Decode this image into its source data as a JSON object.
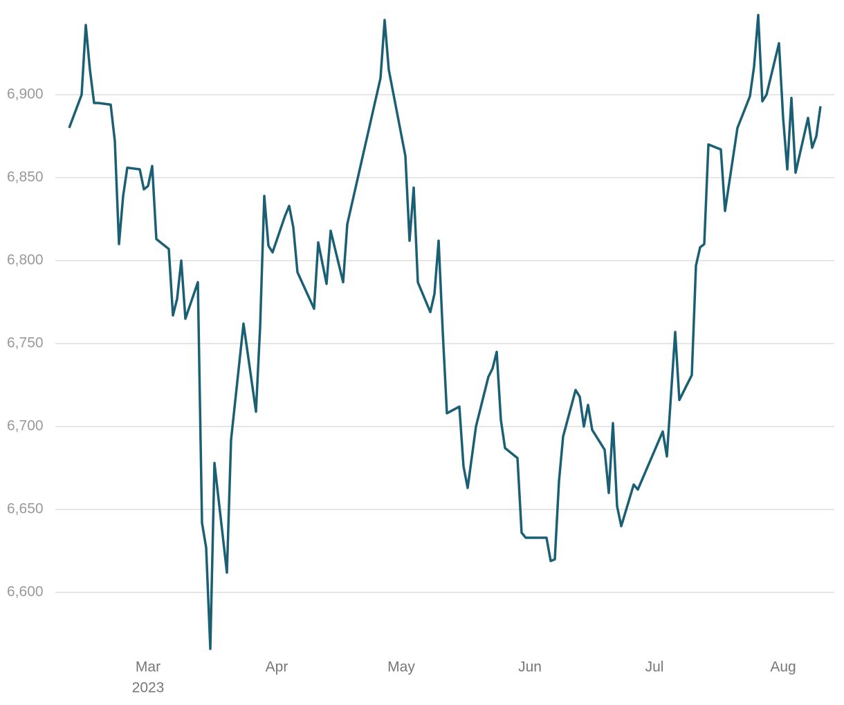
{
  "chart_data": {
    "type": "line",
    "x": [
      -19,
      -16,
      -15,
      -14,
      -13,
      -12,
      -9,
      -8,
      -7,
      -6,
      -5,
      -2,
      -1,
      0,
      1,
      2,
      5,
      6,
      7,
      8,
      9,
      12,
      13,
      14,
      15,
      16,
      19,
      20,
      23,
      26,
      27,
      28,
      29,
      30,
      33,
      34,
      35,
      36,
      40,
      41,
      43,
      44,
      47,
      48,
      56,
      57,
      58,
      62,
      63,
      64,
      65,
      68,
      69,
      70,
      71,
      72,
      75,
      76,
      77,
      79,
      82,
      83,
      84,
      85,
      86,
      89,
      90,
      91,
      96,
      97,
      98,
      99,
      100,
      103,
      104,
      105,
      106,
      107,
      110,
      111,
      112,
      113,
      114,
      117,
      118,
      124,
      125,
      127,
      128,
      131,
      132,
      133,
      134,
      135,
      138,
      139,
      142,
      145,
      146,
      147,
      148,
      149,
      152,
      153,
      154,
      155,
      156,
      159,
      160,
      161,
      162
    ],
    "series": [
      {
        "name": null,
        "color": "#1a5f73",
        "values": [
          6880,
          6900,
          6942,
          6915,
          6895,
          6895,
          6894,
          6872,
          6810,
          6839,
          6856,
          6855,
          6843,
          6845,
          6857,
          6813,
          6807,
          6767,
          6777,
          6800,
          6765,
          6787,
          6642,
          6627,
          6566,
          6678,
          6612,
          6692,
          6762,
          6709,
          6760,
          6839,
          6809,
          6805,
          6827,
          6833,
          6820,
          6793,
          6771,
          6811,
          6786,
          6818,
          6787,
          6822,
          6910,
          6945,
          6915,
          6863,
          6812,
          6844,
          6787,
          6769,
          6780,
          6812,
          6757,
          6708,
          6712,
          6676,
          6663,
          6700,
          6730,
          6735,
          6745,
          6704,
          6687,
          6681,
          6636,
          6633,
          6633,
          6619,
          6620,
          6667,
          6694,
          6722,
          6718,
          6700,
          6713,
          6698,
          6686,
          6660,
          6702,
          6652,
          6640,
          6665,
          6662,
          6697,
          6682,
          6757,
          6716,
          6731,
          6797,
          6808,
          6810,
          6870,
          6867,
          6830,
          6880,
          6899,
          6917,
          6948,
          6896,
          6900,
          6931,
          6886,
          6855,
          6898,
          6853,
          6886,
          6868,
          6875,
          6893
        ]
      }
    ],
    "xlim": [
      -22,
      165
    ],
    "xticks": [
      {
        "value": 0,
        "label": "Mar"
      },
      {
        "value": 31,
        "label": "Apr"
      },
      {
        "value": 61,
        "label": "May"
      },
      {
        "value": 92,
        "label": "Jun"
      },
      {
        "value": 122,
        "label": "Jul"
      },
      {
        "value": 153,
        "label": "Aug"
      }
    ],
    "year_label": "2023",
    "ylim": [
      6563,
      6950
    ],
    "yticks": [
      {
        "value": 6600,
        "label": "6,600"
      },
      {
        "value": 6650,
        "label": "6,650"
      },
      {
        "value": 6700,
        "label": "6,700"
      },
      {
        "value": 6750,
        "label": "6,750"
      },
      {
        "value": 6800,
        "label": "6,800"
      },
      {
        "value": 6850,
        "label": "6,850"
      },
      {
        "value": 6900,
        "label": "6,900"
      }
    ],
    "grid": true
  }
}
